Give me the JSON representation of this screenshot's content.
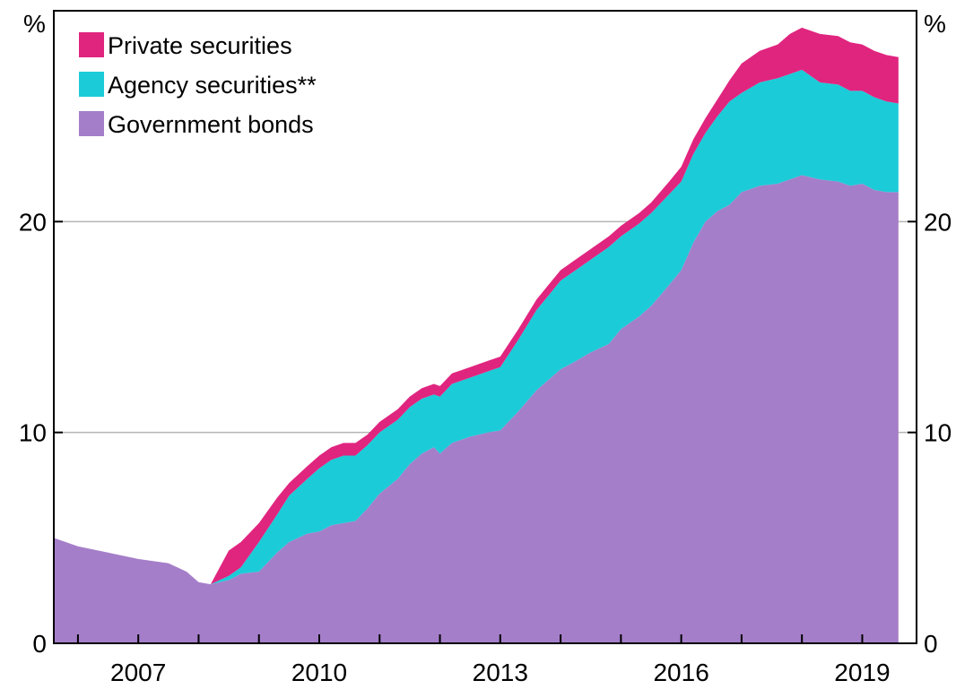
{
  "chart_data": {
    "type": "area",
    "stacked": true,
    "unit_left": "%",
    "unit_right": "%",
    "xlim": [
      2005.6,
      2019.9
    ],
    "ylim": [
      0,
      30
    ],
    "yticks": [
      0,
      10,
      20
    ],
    "xtick_labels": [
      "2007",
      "2010",
      "2013",
      "2016",
      "2019"
    ],
    "xtick_values": [
      2007,
      2010,
      2013,
      2016,
      2019
    ],
    "grid": true,
    "legend_position": "top-left",
    "x": [
      2005.6,
      2006.0,
      2006.5,
      2007.0,
      2007.5,
      2007.8,
      2008.0,
      2008.2,
      2008.5,
      2008.7,
      2009.0,
      2009.3,
      2009.5,
      2009.8,
      2010.0,
      2010.2,
      2010.4,
      2010.6,
      2010.8,
      2011.0,
      2011.3,
      2011.5,
      2011.7,
      2011.9,
      2012.0,
      2012.2,
      2012.5,
      2012.8,
      2013.0,
      2013.3,
      2013.6,
      2013.8,
      2014.0,
      2014.2,
      2014.5,
      2014.8,
      2015.0,
      2015.3,
      2015.5,
      2015.8,
      2016.0,
      2016.2,
      2016.4,
      2016.6,
      2016.8,
      2017.0,
      2017.3,
      2017.6,
      2017.8,
      2018.0,
      2018.3,
      2018.6,
      2018.8,
      2019.0,
      2019.2,
      2019.4,
      2019.6
    ],
    "series": [
      {
        "name": "Government bonds",
        "color": "#a57ec9",
        "values": [
          5.0,
          4.6,
          4.3,
          4.0,
          3.8,
          3.4,
          2.9,
          2.8,
          3.0,
          3.3,
          3.4,
          4.3,
          4.8,
          5.2,
          5.3,
          5.6,
          5.7,
          5.8,
          6.4,
          7.1,
          7.8,
          8.5,
          9.0,
          9.3,
          9.0,
          9.5,
          9.8,
          10.0,
          10.1,
          11.0,
          12.0,
          12.5,
          13.0,
          13.3,
          13.8,
          14.2,
          14.9,
          15.5,
          16.0,
          17.0,
          17.7,
          19.0,
          20.0,
          20.5,
          20.8,
          21.4,
          21.7,
          21.8,
          22.0,
          22.2,
          22.0,
          21.9,
          21.7,
          21.8,
          21.5,
          21.4,
          21.4
        ]
      },
      {
        "name": "Agency securities**",
        "color": "#1ccbd8",
        "values": [
          0,
          0,
          0,
          0,
          0,
          0,
          0,
          0,
          0.2,
          0.3,
          1.4,
          1.8,
          2.2,
          2.6,
          3.0,
          3.1,
          3.2,
          3.1,
          3.0,
          2.9,
          2.8,
          2.7,
          2.6,
          2.5,
          2.7,
          2.8,
          2.8,
          2.9,
          3.0,
          3.4,
          3.8,
          4.0,
          4.2,
          4.3,
          4.4,
          4.6,
          4.4,
          4.4,
          4.4,
          4.3,
          4.2,
          4.2,
          4.2,
          4.5,
          4.9,
          4.7,
          4.9,
          5.0,
          5.0,
          5.0,
          4.6,
          4.6,
          4.5,
          4.4,
          4.4,
          4.3,
          4.2
        ]
      },
      {
        "name": "Private securities",
        "color": "#e0257f",
        "values": [
          0,
          0,
          0,
          0,
          0,
          0,
          0,
          0,
          1.2,
          1.2,
          0.9,
          0.8,
          0.6,
          0.6,
          0.6,
          0.6,
          0.6,
          0.6,
          0.5,
          0.5,
          0.5,
          0.5,
          0.5,
          0.5,
          0.5,
          0.5,
          0.5,
          0.5,
          0.5,
          0.5,
          0.5,
          0.5,
          0.5,
          0.5,
          0.5,
          0.5,
          0.5,
          0.5,
          0.5,
          0.6,
          0.7,
          0.7,
          0.7,
          0.8,
          1.0,
          1.4,
          1.5,
          1.6,
          1.9,
          2.0,
          2.3,
          2.3,
          2.3,
          2.2,
          2.2,
          2.2,
          2.2
        ]
      }
    ],
    "legend": [
      {
        "label": "Private securities",
        "color": "#e0257f"
      },
      {
        "label": "Agency securities**",
        "color": "#1ccbd8"
      },
      {
        "label": "Government bonds",
        "color": "#a57ec9"
      }
    ]
  }
}
